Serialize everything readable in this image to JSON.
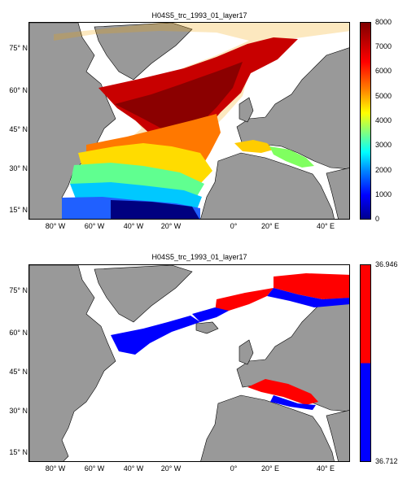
{
  "panels": {
    "top": {
      "title": "H04S5_trc_1993_01_layer17",
      "colorbar": {
        "ticks": [
          "8000",
          "7000",
          "6000",
          "5000",
          "4000",
          "3000",
          "2000",
          "1000",
          "0"
        ],
        "range": [
          0,
          8000
        ],
        "colormap": "jet"
      }
    },
    "bottom": {
      "title": "H04S5_trc_1993_01_layer17",
      "colorbar": {
        "ticks": [
          "36.946",
          "36.712"
        ],
        "range": [
          36.712,
          36.946
        ],
        "colors": [
          "#ff0000",
          "#0000ff"
        ]
      }
    }
  },
  "axes": {
    "y_ticks": [
      "75° N",
      "60° N",
      "45° N",
      "30° N",
      "15° N"
    ],
    "x_ticks": [
      "80° W",
      "60° W",
      "40° W",
      "20° W",
      "0°",
      "20° E",
      "40° E"
    ]
  },
  "colors": {
    "land": "#999999",
    "ocean": "#ffffff",
    "coastline": "#000000"
  }
}
